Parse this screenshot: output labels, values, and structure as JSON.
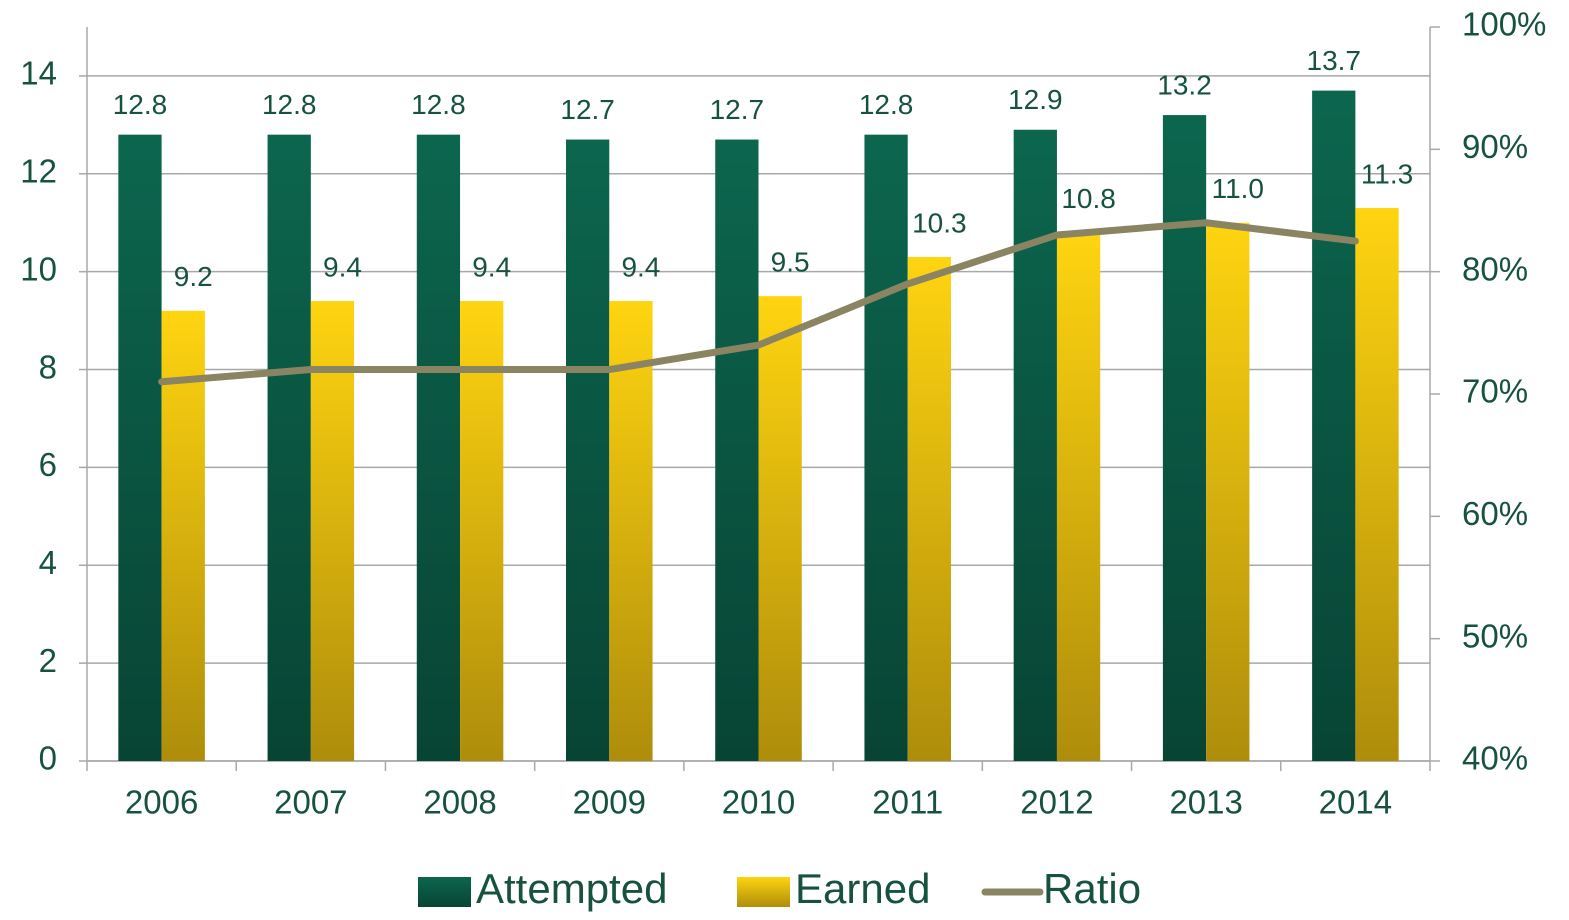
{
  "chart_data": {
    "type": "bar-line",
    "categories": [
      "2006",
      "2007",
      "2008",
      "2009",
      "2010",
      "2011",
      "2012",
      "2013",
      "2014"
    ],
    "series": [
      {
        "name": "Attempted",
        "type": "bar",
        "color": "#0b5e48",
        "values": [
          12.8,
          12.8,
          12.8,
          12.7,
          12.7,
          12.8,
          12.9,
          13.2,
          13.7
        ]
      },
      {
        "name": "Earned",
        "type": "bar",
        "color": "#f2c40f",
        "values": [
          9.2,
          9.4,
          9.4,
          9.4,
          9.5,
          10.3,
          10.8,
          11.0,
          11.3
        ],
        "value_labels": [
          "9.2",
          "9.4",
          "9.4",
          "9.4",
          "9.5",
          "10.3",
          "10.8",
          "11.0",
          "11.3"
        ]
      },
      {
        "name": "Ratio",
        "type": "line",
        "axis": "y2",
        "color": "#8b8462",
        "values": [
          71,
          72,
          72,
          72,
          74,
          79,
          83,
          84,
          82.5
        ]
      }
    ],
    "ylim": [
      0,
      15
    ],
    "yticks": [
      0,
      2,
      4,
      6,
      8,
      10,
      12,
      14
    ],
    "y2lim": [
      40,
      100
    ],
    "y2ticks": [
      {
        "value": 40,
        "label": "40%"
      },
      {
        "value": 50,
        "label": "50%"
      },
      {
        "value": 60,
        "label": "60%"
      },
      {
        "value": 70,
        "label": "70%"
      },
      {
        "value": 80,
        "label": "80%"
      },
      {
        "value": 90,
        "label": "90%"
      },
      {
        "value": 100,
        "label": "100%"
      }
    ],
    "grid": true,
    "legend": "bottom"
  }
}
